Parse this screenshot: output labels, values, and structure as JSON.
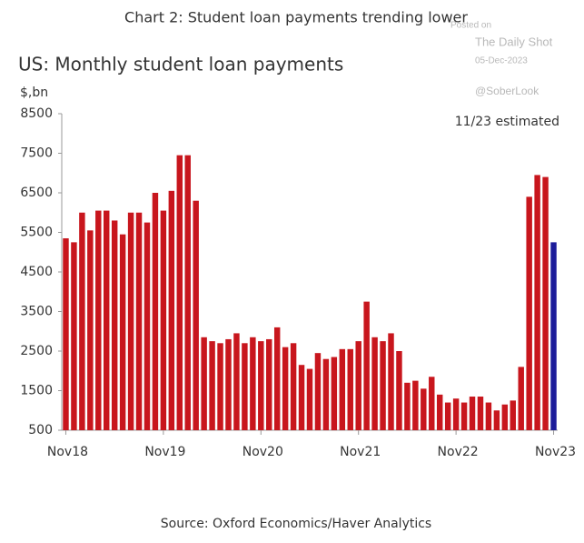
{
  "header": "Chart 2: Student loan payments trending lower",
  "watermark": {
    "posted": "Posted on",
    "site": "The Daily Shot",
    "date": "05-Dec-2023",
    "handle": "@SoberLook"
  },
  "source": "Source: Oxford Economics/Haver Analytics",
  "chart_data": {
    "type": "bar",
    "title": "US: Monthly student loan payments",
    "y_label": "$,bn",
    "annotation": "11/23 estimated",
    "categories": [
      "Nov18",
      null,
      null,
      null,
      null,
      null,
      null,
      null,
      null,
      null,
      null,
      null,
      "Nov19",
      null,
      null,
      null,
      null,
      null,
      null,
      null,
      null,
      null,
      null,
      null,
      "Nov20",
      null,
      null,
      null,
      null,
      null,
      null,
      null,
      null,
      null,
      null,
      null,
      "Nov21",
      null,
      null,
      null,
      null,
      null,
      null,
      null,
      null,
      null,
      null,
      null,
      "Nov22",
      null,
      null,
      null,
      null,
      null,
      null,
      null,
      null,
      null,
      null,
      null,
      "Nov23"
    ],
    "values": [
      5350,
      5250,
      6000,
      5550,
      6050,
      6050,
      5800,
      5450,
      6000,
      6000,
      5750,
      6500,
      6050,
      6550,
      7450,
      7450,
      6300,
      2850,
      2750,
      2700,
      2800,
      2950,
      2700,
      2850,
      2750,
      2800,
      3100,
      2600,
      2700,
      2150,
      2050,
      2450,
      2300,
      2350,
      2550,
      2550,
      2750,
      3750,
      2850,
      2750,
      2950,
      2500,
      1700,
      1750,
      1550,
      1850,
      1400,
      1200,
      1300,
      1200,
      1350,
      1350,
      1200,
      1000,
      1150,
      1250,
      2100,
      6400,
      6950,
      6900,
      5250
    ],
    "color": "#c8161d",
    "last_color": "#1c1c9a",
    "ylim": [
      500,
      8500
    ],
    "yticks": [
      500,
      1500,
      2500,
      3500,
      4500,
      5500,
      6500,
      7500,
      8500
    ],
    "grid": false
  }
}
